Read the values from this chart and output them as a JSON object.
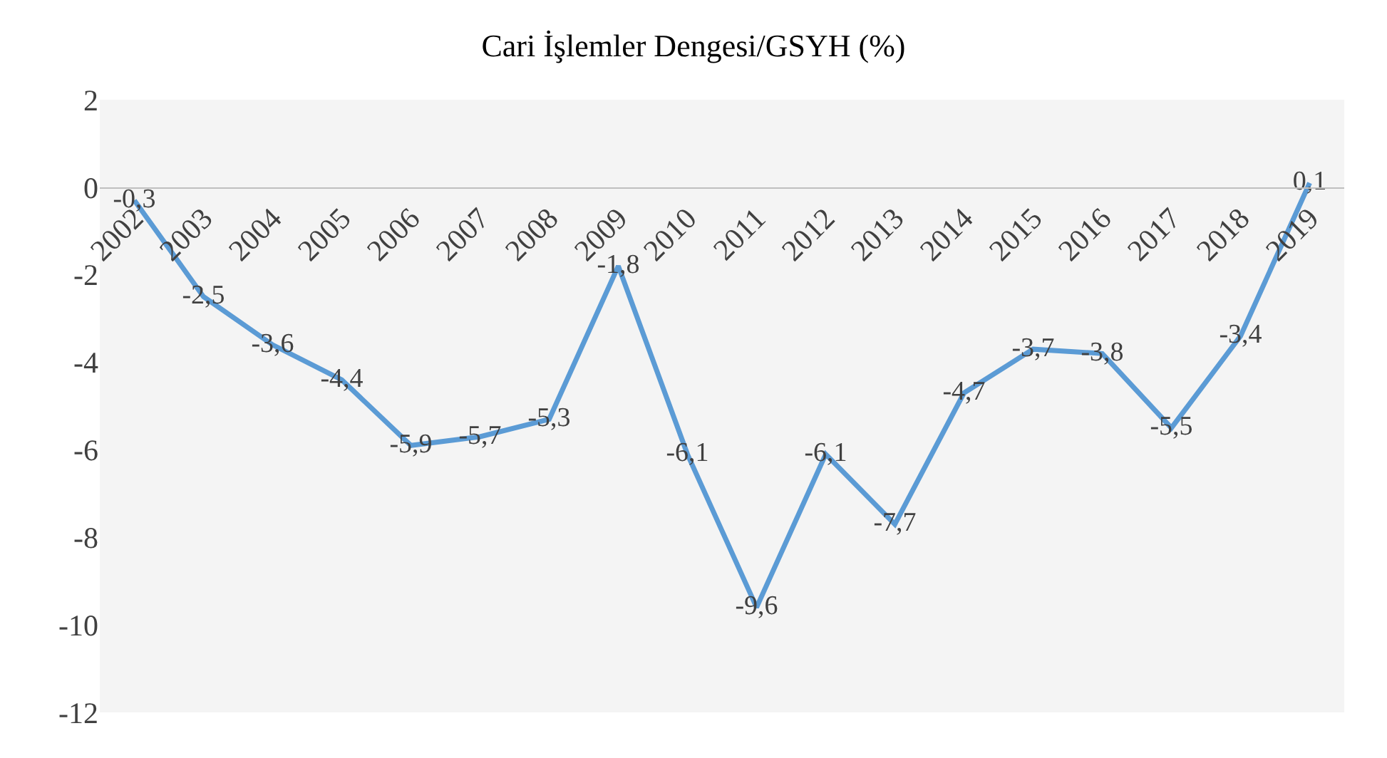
{
  "chart_data": {
    "type": "line",
    "title": "Cari İşlemler Dengesi/GSYH (%)",
    "categories": [
      "2002",
      "2003",
      "2004",
      "2005",
      "2006",
      "2007",
      "2008",
      "2009",
      "2010",
      "2011",
      "2012",
      "2013",
      "2014",
      "2015",
      "2016",
      "2017",
      "2018",
      "2019"
    ],
    "series": [
      {
        "color": "#5b9bd5",
        "values": [
          -0.3,
          -2.5,
          -3.6,
          -4.4,
          -5.9,
          -5.7,
          -5.3,
          -1.8,
          -6.1,
          -9.6,
          -6.1,
          -7.7,
          -4.7,
          -3.7,
          -3.8,
          -5.5,
          -3.4,
          0.1
        ],
        "value_labels": [
          "-0,3",
          "-2,5",
          "-3,6",
          "-4,4",
          "-5,9",
          "-5,7",
          "-5,3",
          "-1,8",
          "-6,1",
          "-9,6",
          "-6,1",
          "-7,7",
          "-4,7",
          "-3,7",
          "-3,8",
          "-5,5",
          "-3,4",
          "0,1"
        ]
      }
    ],
    "ylim": [
      -12,
      2
    ],
    "yticks": [
      -12,
      -10,
      -8,
      -6,
      -4,
      -2,
      0,
      2
    ],
    "grid": false,
    "marker": "none",
    "line_style": "solid"
  }
}
